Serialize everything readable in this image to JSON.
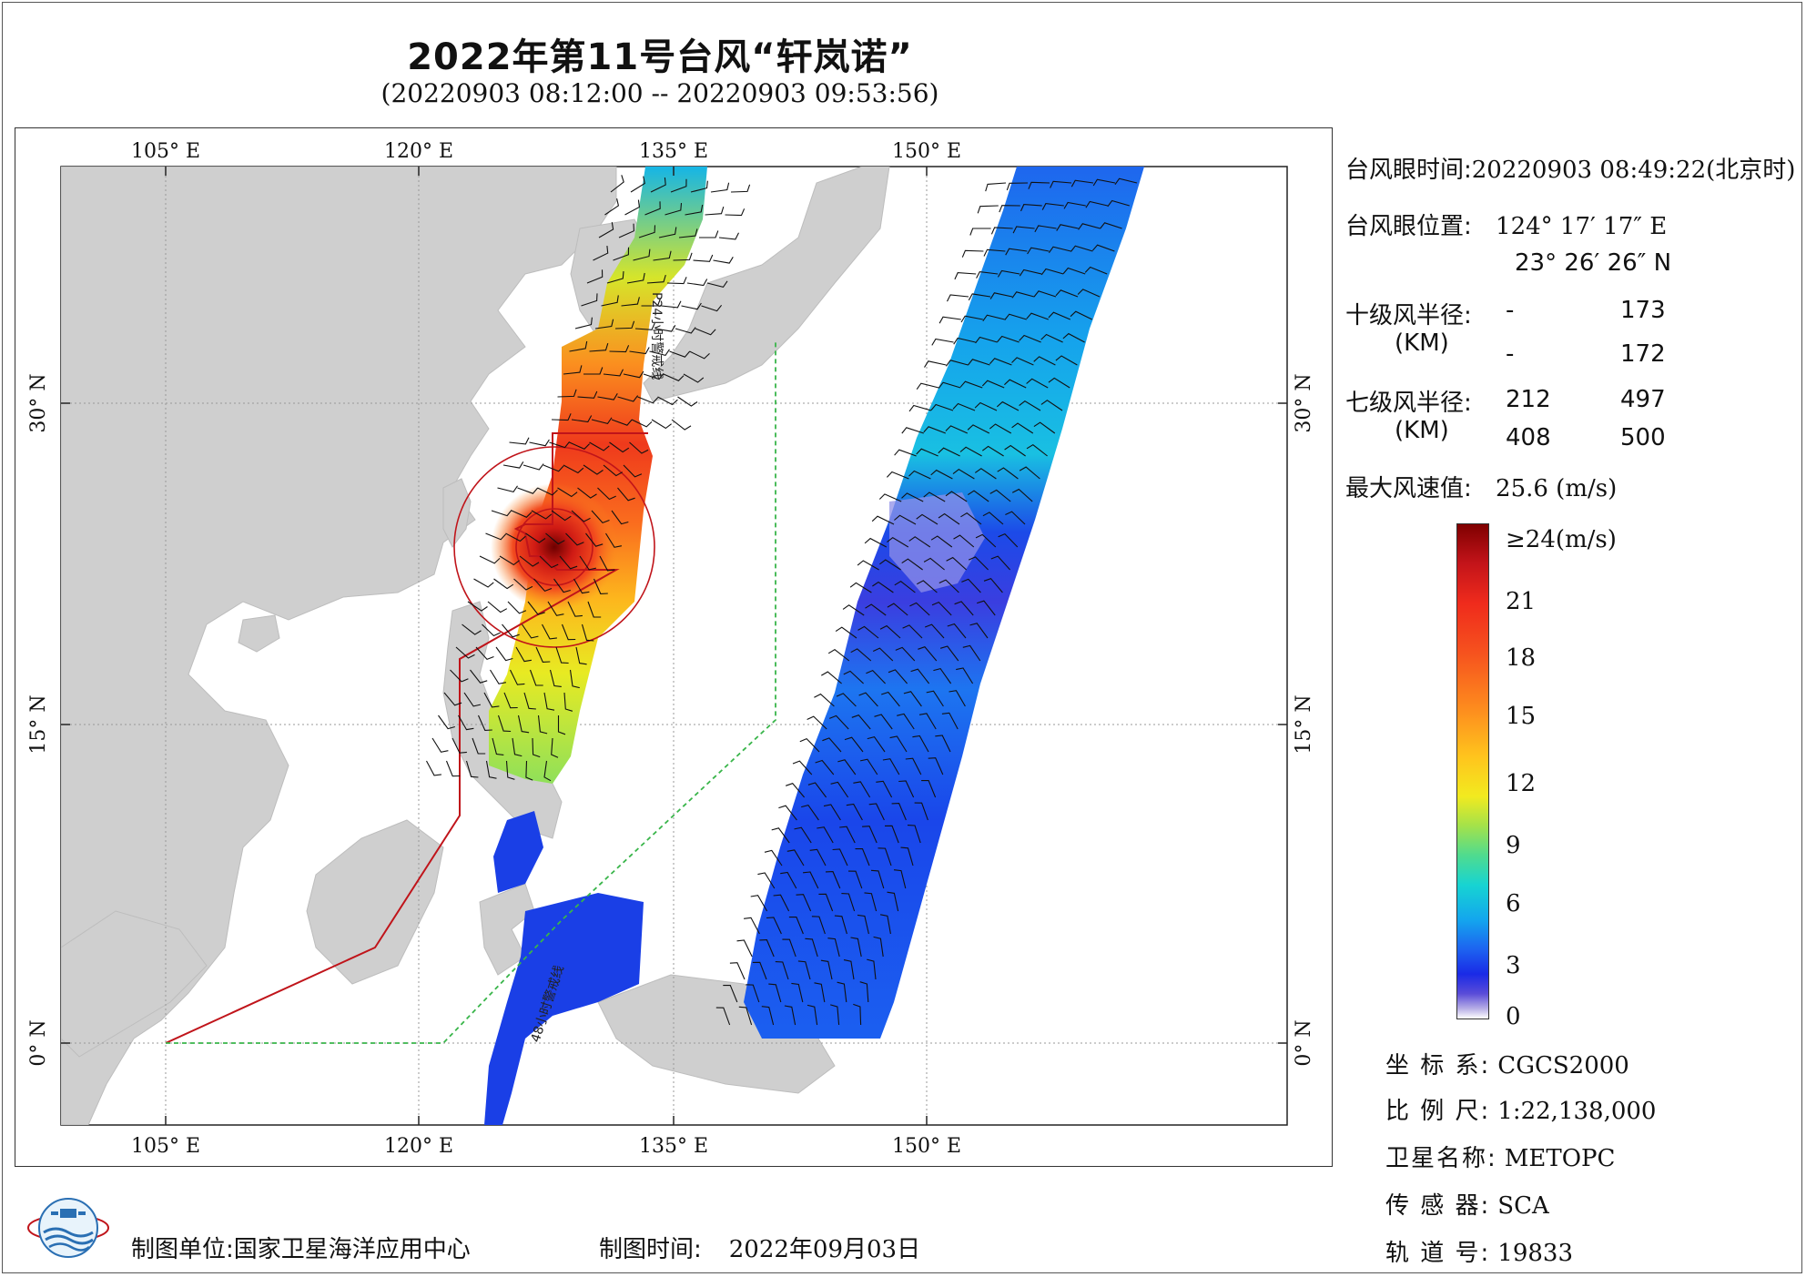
{
  "title": "2022年第11号台风“轩岚诺”",
  "subtitle": "(20220903 08:12:00 -- 20220903 09:53:56)",
  "axes": {
    "top_lon": [
      "105° E",
      "120° E",
      "135° E",
      "150° E"
    ],
    "bottom_lon": [
      "105° E",
      "120° E",
      "135° E",
      "150° E"
    ],
    "left_lat": [
      "30° N",
      "15° N",
      "0° N"
    ],
    "right_lat": [
      "30° N",
      "15° N",
      "0° N"
    ]
  },
  "map_annotations": {
    "line_label_north": "P24小时警戒线",
    "line_label_south": "48小时警戒线"
  },
  "info": {
    "eye_time_label": "台风眼时间:",
    "eye_time_value": "20220903 08:49:22(北京时)",
    "eye_pos_label": "台风眼位置:",
    "eye_lon": "124° 17′ 17″ E",
    "eye_lat": "23° 26′ 26″ N",
    "r10_label": "十级风半径:",
    "r10_unit": "(KM)",
    "r10_row1": [
      "-",
      "173"
    ],
    "r10_row2": [
      "-",
      "172"
    ],
    "r7_label": "七级风半径:",
    "r7_unit": "(KM)",
    "r7_row1": [
      "212",
      "497"
    ],
    "r7_row2": [
      "408",
      "500"
    ],
    "max_wind_label": "最大风速值:",
    "max_wind_value": "25.6 (m/s)"
  },
  "legend": {
    "labels": [
      "≥24(m/s)",
      "21",
      "18",
      "15",
      "12",
      "9",
      "6",
      "3",
      "0"
    ],
    "max_color": "#7f0000",
    "min_color": "#ffffff"
  },
  "meta": {
    "crs_label": "坐 标 系:",
    "crs_value": "CGCS2000",
    "scale_label": "比 例 尺:",
    "scale_value": "1:22,138,000",
    "satellite_label": "卫星名称:",
    "satellite_value": "METOPC",
    "sensor_label": "传 感 器:",
    "sensor_value": "SCA",
    "orbit_label": "轨 道 号:",
    "orbit_value": "19833"
  },
  "footer": {
    "producer_label": "制图单位:",
    "producer_value": "国家卫星海洋应用中心",
    "date_label": "制图时间:",
    "date_value": "2022年09月03日"
  },
  "colors": {
    "land": "#cfcfcf",
    "warning_24h": "#c0141a",
    "warning_48h": "#39b54a"
  }
}
